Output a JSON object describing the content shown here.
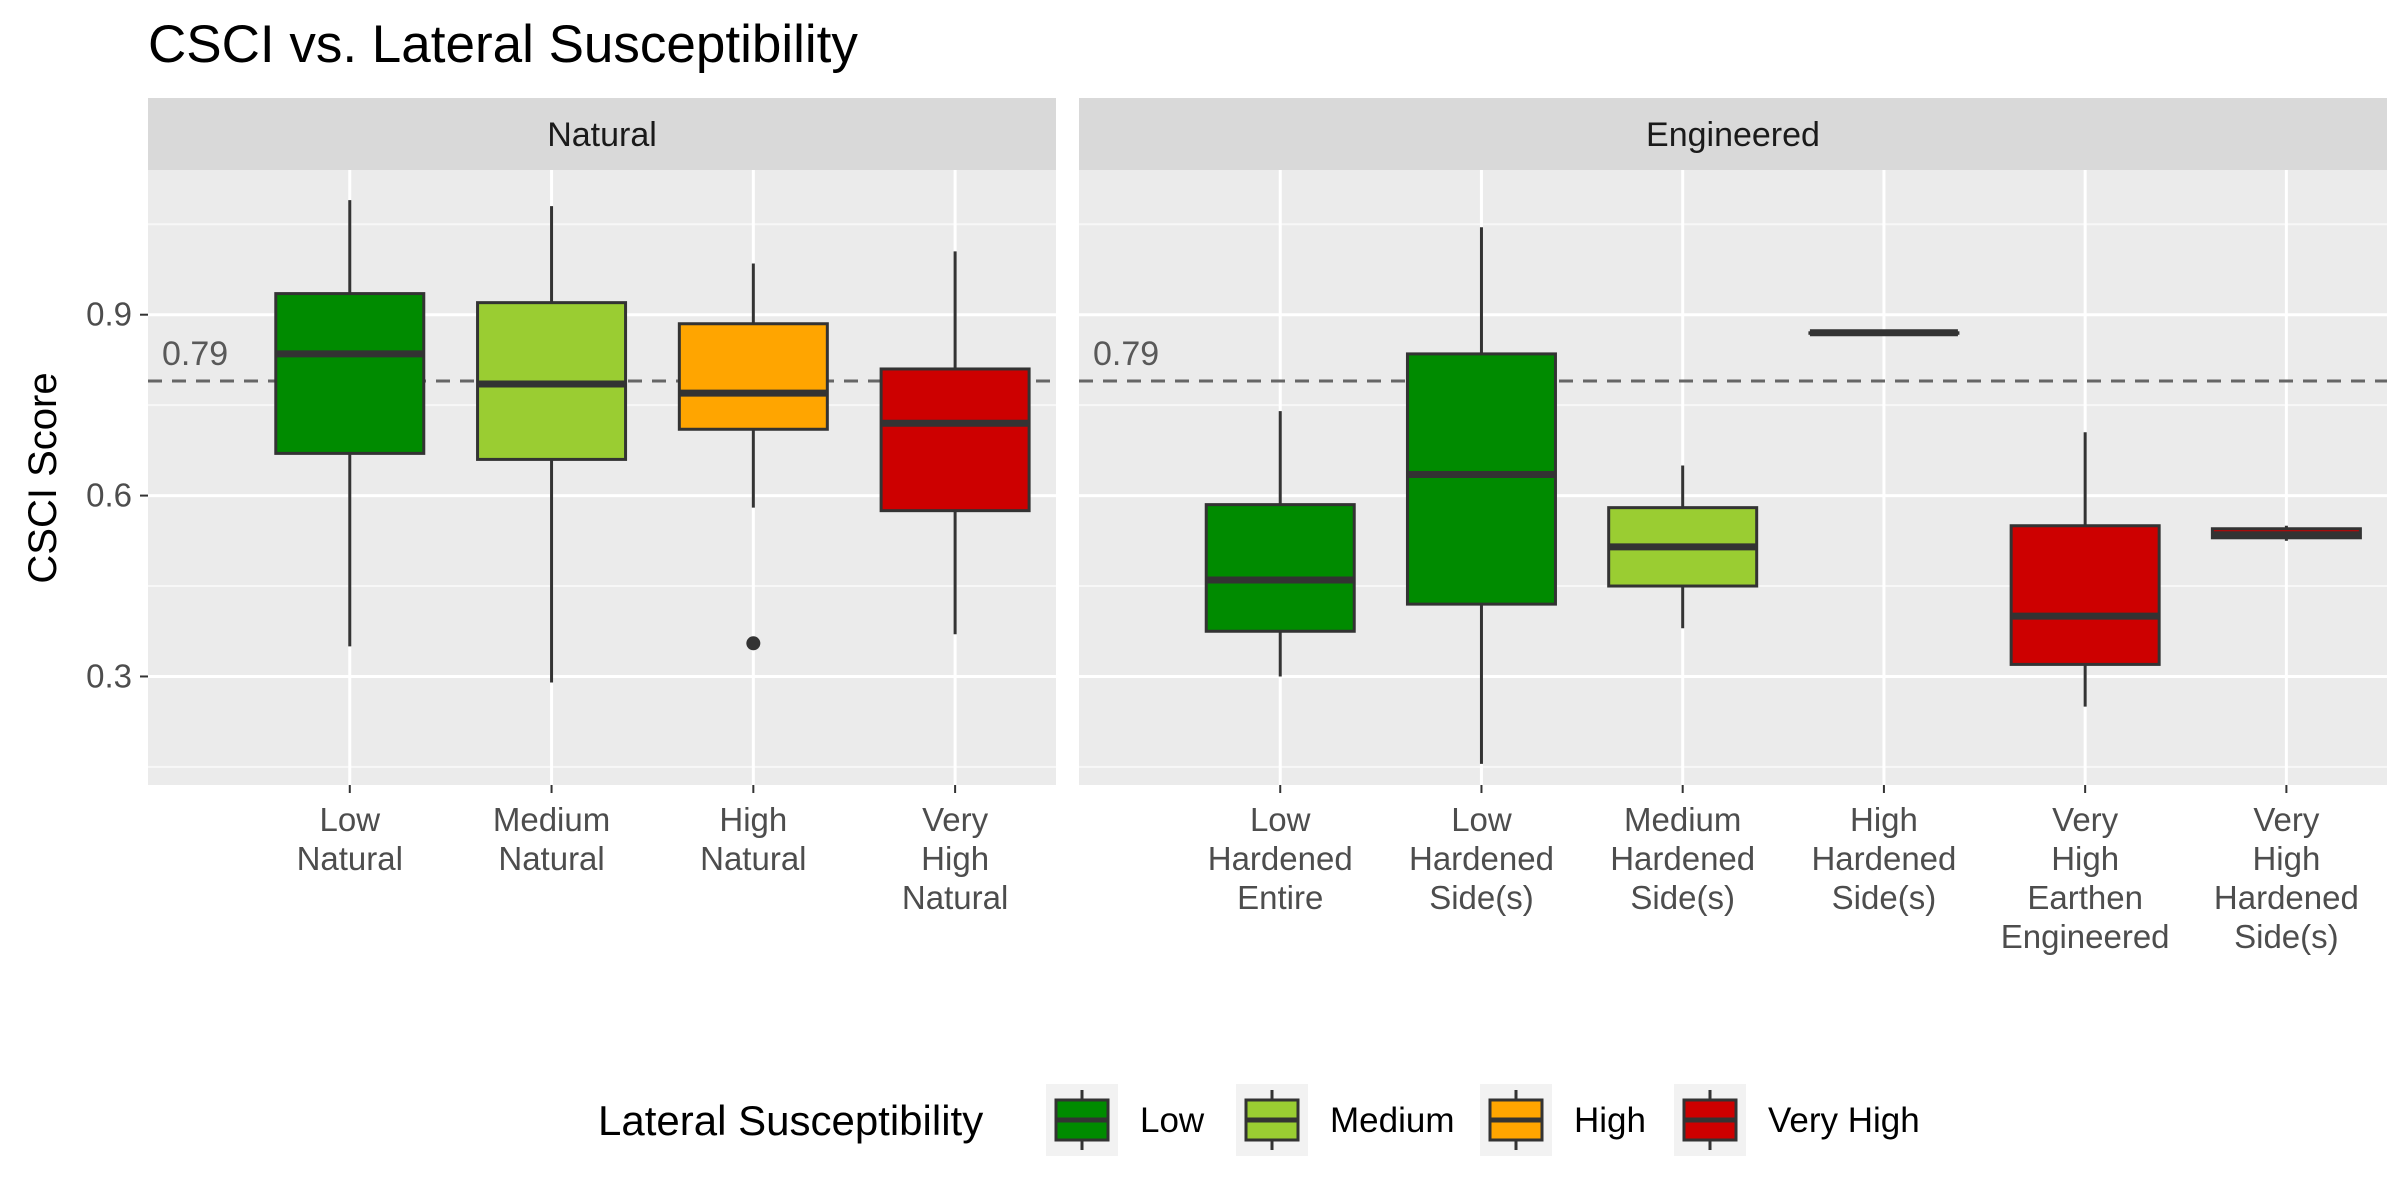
{
  "chart_data": {
    "type": "box",
    "title": "CSCI vs. Lateral Susceptibility",
    "ylabel": "CSCI Score",
    "xlabel": "",
    "ylim": [
      0.12,
      1.14
    ],
    "yticks": [
      0.3,
      0.6,
      0.9
    ],
    "yticks_labels": [
      "0.3",
      "0.6",
      "0.9"
    ],
    "grid": true,
    "reference_line": {
      "value": 0.79,
      "label": "0.79",
      "style": "dashed"
    },
    "legend": {
      "title": "Lateral Susceptibility",
      "position": "bottom",
      "entries": [
        {
          "label": "Low",
          "color": "#008B00"
        },
        {
          "label": "Medium",
          "color": "#9ACD32"
        },
        {
          "label": "High",
          "color": "#FFA500"
        },
        {
          "label": "Very High",
          "color": "#CD0000"
        }
      ]
    },
    "panels": [
      {
        "name": "Natural",
        "categories": [
          {
            "label_lines": [
              "Low",
              "Natural"
            ],
            "group": "Low",
            "min": 0.35,
            "q1": 0.67,
            "median": 0.835,
            "q3": 0.935,
            "max": 1.09,
            "outliers": []
          },
          {
            "label_lines": [
              "Medium",
              "Natural"
            ],
            "group": "Medium",
            "min": 0.29,
            "q1": 0.66,
            "median": 0.785,
            "q3": 0.92,
            "max": 1.08,
            "outliers": []
          },
          {
            "label_lines": [
              "High",
              "Natural"
            ],
            "group": "High",
            "min": 0.58,
            "q1": 0.71,
            "median": 0.77,
            "q3": 0.885,
            "max": 0.985,
            "outliers": [
              0.355
            ]
          },
          {
            "label_lines": [
              "Very",
              "High",
              "Natural"
            ],
            "group": "Very High",
            "min": 0.37,
            "q1": 0.575,
            "median": 0.72,
            "q3": 0.81,
            "max": 1.005,
            "outliers": []
          }
        ]
      },
      {
        "name": "Engineered",
        "categories": [
          {
            "label_lines": [
              "Low",
              "Hardened",
              "Entire"
            ],
            "group": "Low",
            "min": 0.3,
            "q1": 0.375,
            "median": 0.46,
            "q3": 0.585,
            "max": 0.74,
            "outliers": []
          },
          {
            "label_lines": [
              "Low",
              "Hardened",
              "Side(s)"
            ],
            "group": "Low",
            "min": 0.155,
            "q1": 0.42,
            "median": 0.635,
            "q3": 0.835,
            "max": 1.045,
            "outliers": []
          },
          {
            "label_lines": [
              "Medium",
              "Hardened",
              "Side(s)"
            ],
            "group": "Medium",
            "min": 0.38,
            "q1": 0.45,
            "median": 0.515,
            "q3": 0.58,
            "max": 0.65,
            "outliers": []
          },
          {
            "label_lines": [
              "High",
              "Hardened",
              "Side(s)"
            ],
            "group": "High",
            "min": 0.87,
            "q1": 0.87,
            "median": 0.87,
            "q3": 0.87,
            "max": 0.87,
            "outliers": []
          },
          {
            "label_lines": [
              "Very",
              "High",
              "Earthen",
              "Engineered"
            ],
            "group": "Very High",
            "min": 0.25,
            "q1": 0.32,
            "median": 0.4,
            "q3": 0.55,
            "max": 0.705,
            "outliers": []
          },
          {
            "label_lines": [
              "Very",
              "High",
              "Hardened",
              "Side(s)"
            ],
            "group": "Very High",
            "min": 0.525,
            "q1": 0.53,
            "median": 0.535,
            "q3": 0.545,
            "max": 0.55,
            "outliers": []
          }
        ]
      }
    ]
  }
}
